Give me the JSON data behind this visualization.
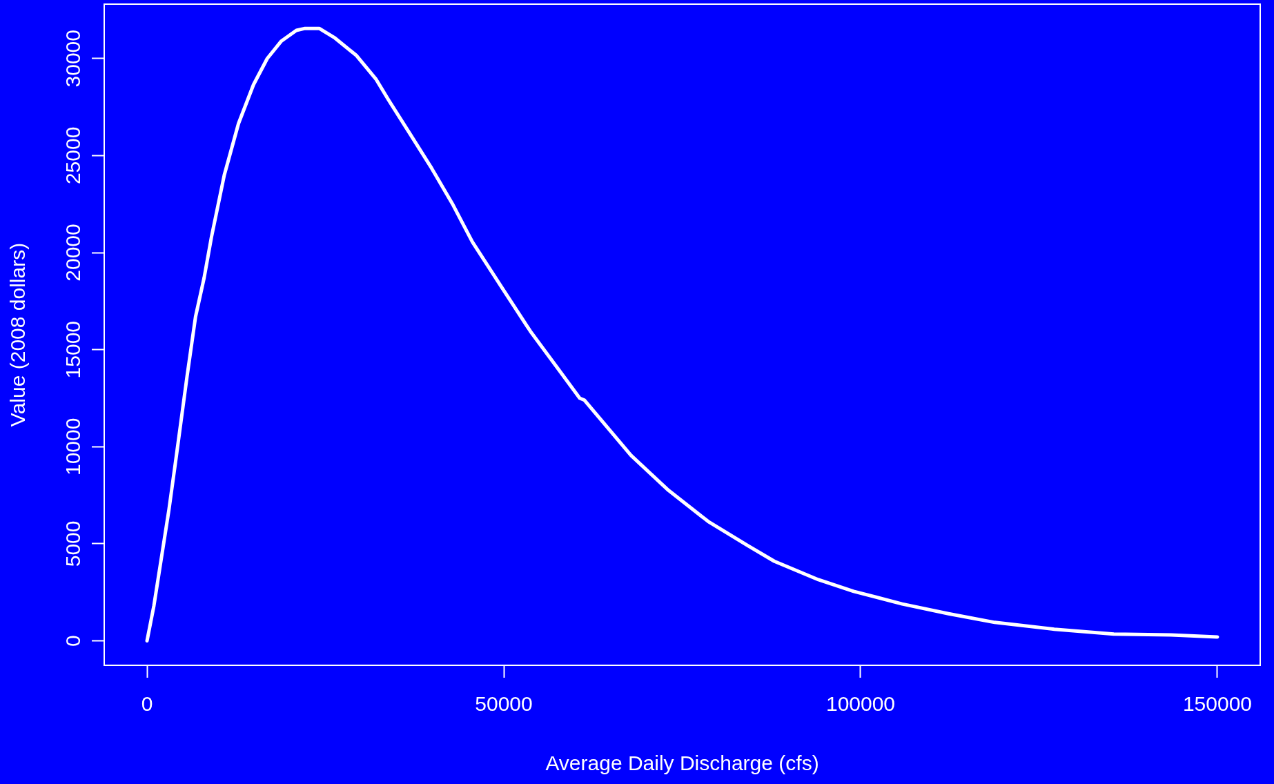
{
  "chart_data": {
    "type": "line",
    "xlabel": "Average Daily Discharge (cfs)",
    "ylabel": "Value (2008 dollars)",
    "xlim": [
      -6000,
      156000
    ],
    "ylim": [
      -1260,
      32800
    ],
    "xticks": [
      0,
      50000,
      100000,
      150000
    ],
    "yticks": [
      0,
      5000,
      10000,
      15000,
      20000,
      25000,
      30000
    ],
    "line_style": "solid",
    "series": [
      {
        "color": "#ffffff",
        "x": [
          0,
          960,
          3070,
          4100,
          5600,
          6800,
          8000,
          9030,
          10830,
          12820,
          14920,
          16850,
          18830,
          20930,
          22140,
          24130,
          26350,
          29360,
          32060,
          33870,
          36880,
          39880,
          42890,
          45600,
          49820,
          53720,
          57330,
          60640,
          61300,
          67830,
          73090,
          78640,
          84200,
          87910,
          94090,
          99030,
          105830,
          112320,
          118800,
          127140,
          135480,
          143500,
          150000
        ],
        "values": [
          0,
          1800,
          6750,
          9500,
          13600,
          16700,
          18700,
          20800,
          24000,
          26650,
          28650,
          30000,
          30900,
          31450,
          31550,
          31550,
          31050,
          30150,
          28950,
          27850,
          26100,
          24350,
          22450,
          20550,
          18150,
          15950,
          14150,
          12500,
          12400,
          9550,
          7750,
          6150,
          4900,
          4100,
          3150,
          2550,
          1900,
          1400,
          950,
          600,
          350,
          300,
          200
        ]
      }
    ]
  }
}
